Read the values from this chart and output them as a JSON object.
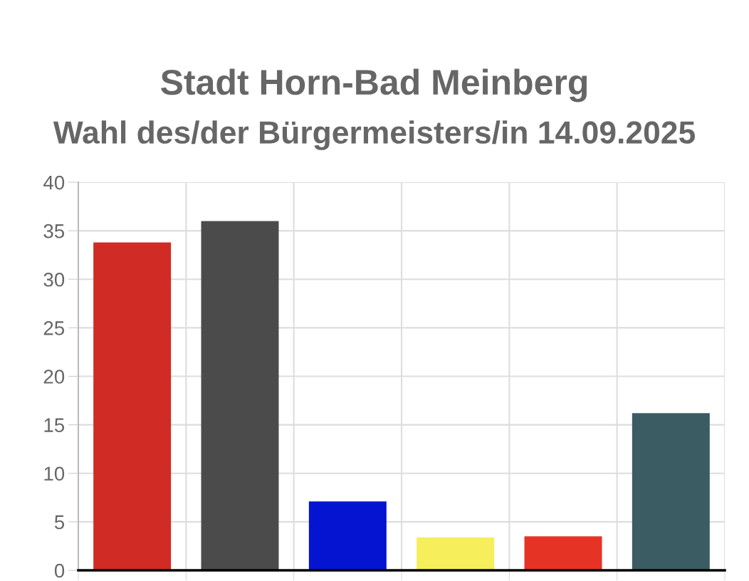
{
  "chart_data": {
    "type": "bar",
    "title": "Stadt Horn-Bad Meinberg",
    "subtitle": "Wahl des/der Bürgermeisters/in 14.09.2025",
    "categories": [
      null,
      null,
      null,
      null,
      null,
      null
    ],
    "values": [
      33.8,
      36.0,
      7.1,
      3.4,
      3.5,
      16.2
    ],
    "colors": [
      "#d02b24",
      "#4b4b4b",
      "#0414d0",
      "#f6ee5a",
      "#e53325",
      "#3a5c62"
    ],
    "ylim": [
      0,
      40
    ],
    "yticks": [
      0,
      5,
      10,
      15,
      20,
      25,
      30,
      35,
      40
    ],
    "grid": true
  }
}
